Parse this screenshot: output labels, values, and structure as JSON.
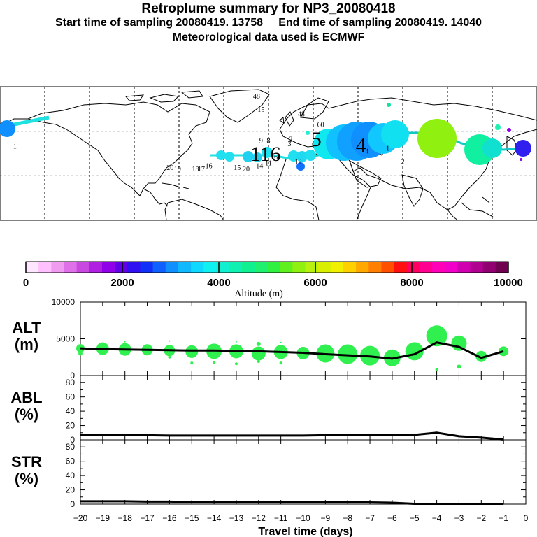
{
  "header": {
    "title": "Retroplume summary for NP3_20080418",
    "sampling_line": "Start time of sampling 20080419. 13758     End time of sampling 20080419. 14040",
    "met_line": "Meteorological data used is ECMWF"
  },
  "colorbar": {
    "tick_labels": [
      "0",
      "2000",
      "4000",
      "6000",
      "8000",
      "10000"
    ],
    "label": "Altitude (m)",
    "colors": [
      "#ffe6ff",
      "#ffc0ff",
      "#f09af0",
      "#e070e8",
      "#c848e0",
      "#b020e0",
      "#9000e8",
      "#6000e8",
      "#3010f0",
      "#1030f8",
      "#1060ff",
      "#1090ff",
      "#10b8ff",
      "#10d8ff",
      "#10f0f0",
      "#10f0d0",
      "#10f0b0",
      "#10f090",
      "#20f070",
      "#30f040",
      "#60f020",
      "#90f010",
      "#b8f010",
      "#d8f000",
      "#f0f000",
      "#ffd000",
      "#ffa800",
      "#ff8000",
      "#ff5000",
      "#ff1010",
      "#ff0060",
      "#ff0090",
      "#ff00b8",
      "#f000c8",
      "#d000b0",
      "#b00090",
      "#900070",
      "#700050"
    ]
  },
  "map": {
    "plume_labels": [
      {
        "text": "20",
        "lon": -66,
        "lat": 34
      },
      {
        "text": "19",
        "lon": -61,
        "lat": 33
      },
      {
        "text": "18",
        "lon": -49,
        "lat": 33
      },
      {
        "text": "17",
        "lon": -45,
        "lat": 33
      },
      {
        "text": "16",
        "lon": -40,
        "lat": 35
      },
      {
        "text": "15",
        "lon": -21,
        "lat": 34
      },
      {
        "text": "20",
        "lon": -15,
        "lat": 33
      },
      {
        "text": "14",
        "lon": -6,
        "lat": 35
      },
      {
        "text": "11",
        "lon": 0,
        "lat": 37
      },
      {
        "text": "6",
        "lon": 5,
        "lat": 41
      },
      {
        "text": "3",
        "lon": 14,
        "lat": 50
      },
      {
        "text": "2",
        "lon": 15,
        "lat": 53
      },
      {
        "text": "12",
        "lon": 20,
        "lat": 38
      },
      {
        "text": "9",
        "lon": -5,
        "lat": 52
      },
      {
        "text": "8",
        "lon": 0,
        "lat": 52
      },
      {
        "text": "4",
        "lon": 66,
        "lat": 45
      },
      {
        "text": "2",
        "lon": 90,
        "lat": 38
      },
      {
        "text": "1",
        "lon": 80,
        "lat": 47
      },
      {
        "text": "1",
        "lon": -170,
        "lat": 48
      },
      {
        "text": "48",
        "lon": -8,
        "lat": 82
      },
      {
        "text": "15",
        "lon": -5,
        "lat": 73
      },
      {
        "text": "48",
        "lon": 22,
        "lat": 70
      },
      {
        "text": "60",
        "lon": 35,
        "lat": 63
      }
    ],
    "big_labels": [
      {
        "text": "116",
        "lon": -2,
        "lat": 40
      },
      {
        "text": "5",
        "lon": 32,
        "lat": 50
      },
      {
        "text": "4",
        "lon": 62,
        "lat": 46
      }
    ]
  },
  "chart_data": {
    "type": "line",
    "xlabel": "Travel time (days)",
    "x_ticks": [
      "−20",
      "−19",
      "−18",
      "−17",
      "−16",
      "−15",
      "−14",
      "−13",
      "−12",
      "−11",
      "−10",
      "−9",
      "−8",
      "−7",
      "−6",
      "−5",
      "−4",
      "−3",
      "−2",
      "−1",
      "0"
    ],
    "x_range": [
      -20,
      0
    ],
    "panels": [
      {
        "label": "ALT",
        "unit": "(m)",
        "ylim": [
          0,
          10000
        ],
        "y_ticks": [
          "0",
          "5000",
          "10000"
        ],
        "series_x": [
          -20,
          -19,
          -18,
          -17,
          -16,
          -15,
          -14,
          -13,
          -12,
          -11,
          -10,
          -9,
          -8,
          -7,
          -6,
          -5,
          -4,
          -3,
          -2,
          -1
        ],
        "series_y": [
          3700,
          3600,
          3550,
          3500,
          3450,
          3400,
          3400,
          3350,
          3300,
          3200,
          3100,
          2900,
          2750,
          2600,
          2300,
          2900,
          4500,
          3900,
          2400,
          3300
        ],
        "bubbles": [
          {
            "x": -20,
            "y": 3700,
            "r": 6
          },
          {
            "x": -19,
            "y": 3650,
            "r": 9
          },
          {
            "x": -18,
            "y": 3550,
            "r": 9
          },
          {
            "x": -17,
            "y": 3500,
            "r": 8
          },
          {
            "x": -16,
            "y": 3400,
            "r": 8
          },
          {
            "x": -15,
            "y": 3250,
            "r": 9
          },
          {
            "x": -14,
            "y": 3300,
            "r": 11
          },
          {
            "x": -13,
            "y": 3300,
            "r": 10
          },
          {
            "x": -12,
            "y": 3000,
            "r": 10
          },
          {
            "x": -11,
            "y": 3200,
            "r": 10
          },
          {
            "x": -10,
            "y": 3050,
            "r": 9
          },
          {
            "x": -9,
            "y": 3000,
            "r": 13
          },
          {
            "x": -8,
            "y": 2900,
            "r": 14
          },
          {
            "x": -7,
            "y": 2700,
            "r": 14
          },
          {
            "x": -6,
            "y": 2400,
            "r": 12
          },
          {
            "x": -5,
            "y": 3300,
            "r": 13
          },
          {
            "x": -4,
            "y": 5400,
            "r": 15
          },
          {
            "x": -3,
            "y": 4400,
            "r": 11
          },
          {
            "x": -2,
            "y": 2600,
            "r": 8
          },
          {
            "x": -1,
            "y": 3300,
            "r": 7
          },
          {
            "x": -20,
            "y": 3000,
            "r": 3
          },
          {
            "x": -16,
            "y": 2500,
            "r": 2
          },
          {
            "x": -15,
            "y": 1700,
            "r": 2
          },
          {
            "x": -12,
            "y": 1900,
            "r": 2
          },
          {
            "x": -12,
            "y": 4300,
            "r": 3
          },
          {
            "x": -11,
            "y": 1700,
            "r": 2
          },
          {
            "x": -14,
            "y": 1800,
            "r": 2
          },
          {
            "x": -13,
            "y": 1600,
            "r": 2
          },
          {
            "x": -3,
            "y": 1200,
            "r": 3
          },
          {
            "x": -4,
            "y": 800,
            "r": 2
          },
          {
            "x": -18,
            "y": 4600,
            "r": 1
          },
          {
            "x": -16,
            "y": 4700,
            "r": 1
          },
          {
            "x": -13,
            "y": 4600,
            "r": 1
          },
          {
            "x": -11,
            "y": 4500,
            "r": 1
          }
        ]
      },
      {
        "label": "ABL",
        "unit": "(%)",
        "ylim": [
          0,
          90
        ],
        "y_ticks": [
          "0",
          "20",
          "40",
          "60",
          "80"
        ],
        "series_x": [
          -20,
          -19,
          -18,
          -17,
          -16,
          -15,
          -14,
          -13,
          -12,
          -11,
          -10,
          -9,
          -8,
          -7,
          -6,
          -5,
          -4,
          -3,
          -2,
          -1
        ],
        "series_y": [
          7,
          7,
          6.5,
          6.5,
          6,
          6,
          6,
          6,
          6,
          6,
          6,
          6.5,
          6.5,
          7,
          7,
          7,
          10,
          5,
          3,
          0.5
        ]
      },
      {
        "label": "STR",
        "unit": "(%)",
        "ylim": [
          0,
          90
        ],
        "y_ticks": [
          "0",
          "20",
          "40",
          "60",
          "80"
        ],
        "series_x": [
          -20,
          -19,
          -18,
          -17,
          -16,
          -15,
          -14,
          -13,
          -12,
          -11,
          -10,
          -9,
          -8,
          -7,
          -6,
          -5,
          -4,
          -3,
          -2,
          -1
        ],
        "series_y": [
          4,
          4,
          4,
          3.5,
          3.5,
          3,
          3,
          3,
          3,
          3,
          3,
          3,
          3,
          2.5,
          2,
          0.5,
          0.5,
          0.5,
          0.5,
          0.5
        ]
      }
    ]
  }
}
